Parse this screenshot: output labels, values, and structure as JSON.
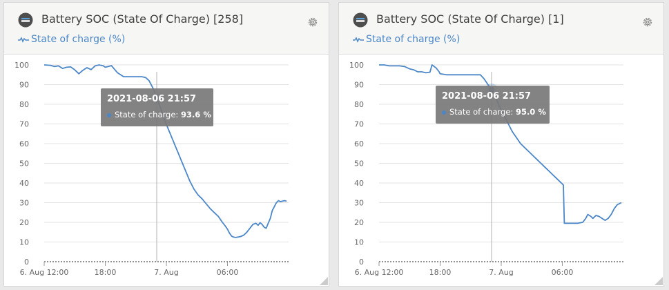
{
  "colors": {
    "series": "#4a86c8",
    "grid": "#e3e3e3",
    "axis_text": "#666666"
  },
  "panels": [
    {
      "title": "Battery SOC (State Of Charge) [258]",
      "legend": "State of charge (%)",
      "tooltip": {
        "time": "2021-08-06 21:57",
        "label": "State of charge:",
        "value": "93.6 %"
      }
    },
    {
      "title": "Battery SOC (State Of Charge) [1]",
      "legend": "State of charge (%)",
      "tooltip": {
        "time": "2021-08-06 21:57",
        "label": "State of charge:",
        "value": "95.0 %"
      }
    }
  ],
  "chart_data": [
    {
      "type": "line",
      "title": "Battery SOC (State Of Charge) [258]",
      "xlabel": "",
      "ylabel": "",
      "y_ticks": [
        0,
        10,
        20,
        30,
        40,
        50,
        60,
        70,
        80,
        90,
        100
      ],
      "ylim": [
        0,
        100
      ],
      "x_ticks": [
        "6. Aug 12:00",
        "18:00",
        "7. Aug",
        "06:00"
      ],
      "x_tick_hours": [
        12,
        18,
        24,
        30
      ],
      "xlim_hours": [
        12,
        36
      ],
      "grid": true,
      "legend_position": "top-left",
      "series": [
        {
          "name": "State of charge (%)",
          "x_hours": [
            12.0,
            12.6,
            13.0,
            13.4,
            13.8,
            14.2,
            14.6,
            15.0,
            15.4,
            15.8,
            16.2,
            16.6,
            17.0,
            17.4,
            17.8,
            18.0,
            18.6,
            19.2,
            19.8,
            20.4,
            21.0,
            21.6,
            21.95,
            22.3,
            22.7,
            23.1,
            23.5,
            23.9,
            24.3,
            24.7,
            25.1,
            25.5,
            25.9,
            26.3,
            26.7,
            27.1,
            27.5,
            27.9,
            28.3,
            28.7,
            29.1,
            29.5,
            29.8,
            30.0,
            30.2,
            30.4,
            30.6,
            30.8,
            31.0,
            31.3,
            31.6,
            31.9,
            32.2,
            32.5,
            32.8,
            33.0,
            33.2,
            33.4,
            33.6,
            33.8,
            34.0,
            34.2,
            34.4,
            34.6,
            34.8,
            35.0,
            35.2,
            35.4,
            35.6,
            35.8
          ],
          "values": [
            100,
            99.8,
            99.2,
            99.5,
            98.2,
            98.8,
            99,
            97.5,
            95.5,
            97.3,
            98.6,
            97.6,
            99.5,
            100,
            99.5,
            98.8,
            99.6,
            96,
            94,
            94,
            94,
            94,
            93.6,
            92,
            88,
            83,
            77,
            71,
            66,
            61,
            56,
            51,
            46,
            41,
            37,
            34,
            32,
            29.5,
            27,
            25,
            23,
            20,
            18,
            16.5,
            14.5,
            13,
            12.5,
            12.3,
            12.5,
            12.8,
            13.5,
            15,
            17,
            19,
            19.5,
            18.5,
            19.8,
            19,
            17.5,
            17,
            19.5,
            22,
            26,
            28,
            30,
            31,
            30.5,
            30.8,
            31,
            30.8
          ]
        }
      ]
    },
    {
      "type": "line",
      "title": "Battery SOC (State Of Charge) [1]",
      "xlabel": "",
      "ylabel": "",
      "y_ticks": [
        0,
        10,
        20,
        30,
        40,
        50,
        60,
        70,
        80,
        90,
        100
      ],
      "ylim": [
        0,
        100
      ],
      "x_ticks": [
        "6. Aug 12:00",
        "18:00",
        "7. Aug",
        "06:00"
      ],
      "x_tick_hours": [
        12,
        18,
        24,
        30
      ],
      "xlim_hours": [
        12,
        36
      ],
      "grid": true,
      "legend_position": "top-left",
      "series": [
        {
          "name": "State of charge (%)",
          "x_hours": [
            12.0,
            12.5,
            13.0,
            13.5,
            14.0,
            14.5,
            15.0,
            15.4,
            15.8,
            16.2,
            16.6,
            17.0,
            17.2,
            17.6,
            17.9,
            18.0,
            18.6,
            19.2,
            19.8,
            20.4,
            21.0,
            21.6,
            21.95,
            22.3,
            22.7,
            23.1,
            23.5,
            23.9,
            24.3,
            24.7,
            25.1,
            25.5,
            25.9,
            26.3,
            26.7,
            27.1,
            27.5,
            27.9,
            28.3,
            28.7,
            29.1,
            29.5,
            29.9,
            30.1,
            30.2,
            30.5,
            31.0,
            31.5,
            32.0,
            32.3,
            32.5,
            32.8,
            33.0,
            33.3,
            33.6,
            33.9,
            34.2,
            34.5,
            34.8,
            35.1,
            35.4,
            35.8
          ],
          "values": [
            100,
            100,
            99.5,
            99.5,
            99.5,
            99.2,
            98,
            97.5,
            96.5,
            96.5,
            96,
            96.3,
            100,
            98.5,
            96.5,
            95.5,
            95,
            95,
            95,
            95,
            95,
            95,
            95,
            93,
            90,
            87,
            83,
            78,
            74,
            70,
            66,
            63,
            60,
            58,
            56,
            54,
            52,
            50,
            48,
            46,
            44,
            42,
            40,
            39,
            19.5,
            19.5,
            19.5,
            19.5,
            20,
            22,
            24,
            23,
            22,
            23.5,
            23,
            22,
            21,
            22,
            24,
            27,
            29,
            30
          ]
        }
      ]
    }
  ]
}
